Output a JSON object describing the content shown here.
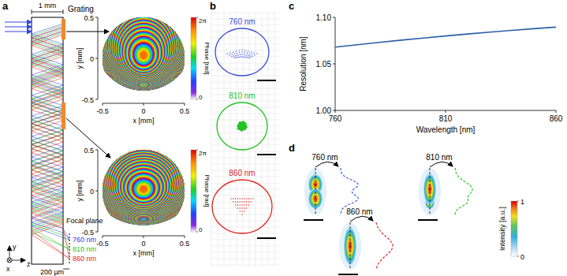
{
  "panel_labels": [
    "a",
    "b",
    "c",
    "d"
  ],
  "schematic": {
    "width_label": "1 mm",
    "grating_label": "Grating",
    "focal_plane_label": "Focal plane",
    "distance_label": "200 µm",
    "input_color": "#3344dd",
    "grating_color": "#f0892a",
    "wavelengths": [
      {
        "label": "760 nm",
        "color": "#2a3fe0"
      },
      {
        "label": "810 nm",
        "color": "#1fbf1f"
      },
      {
        "label": "860 nm",
        "color": "#e5201c"
      }
    ],
    "axis_labels": [
      "y",
      "x",
      "z"
    ]
  },
  "phase_maps": {
    "xlabel": "x [mm]",
    "ylabel": "y [mm]",
    "xlim": [
      -0.5,
      0.5
    ],
    "ylim": [
      -0.5,
      0.5
    ],
    "xticks": [
      -0.5,
      0,
      0.5
    ],
    "yticks": [
      -0.5,
      0,
      0.5
    ],
    "colorbar": {
      "label": "Phase [rad]",
      "range": [
        0,
        6.2832
      ],
      "ticks": [
        0,
        {
          "value": 6.2832,
          "label": "2π"
        }
      ]
    }
  },
  "spot_diagrams": [
    {
      "label": "760 nm",
      "color": "#3b4fd8"
    },
    {
      "label": "810 nm",
      "color": "#22c322"
    },
    {
      "label": "860 nm",
      "color": "#e0231d"
    }
  ],
  "chart_data": {
    "type": "line",
    "xlabel": "Wavelength [nm]",
    "ylabel": "Resolution [nm]",
    "x": [
      760,
      770,
      780,
      790,
      800,
      810,
      820,
      830,
      840,
      850,
      860
    ],
    "values": [
      1.068,
      1.0706,
      1.0731,
      1.0755,
      1.0778,
      1.08,
      1.0821,
      1.0841,
      1.086,
      1.0878,
      1.0895
    ],
    "color": "#2a5ea8",
    "xlim": [
      760,
      860
    ],
    "ylim": [
      1.0,
      1.1
    ],
    "xticks": [
      760,
      810,
      860
    ],
    "yticks": [
      {
        "value": 1.0,
        "label": "1.00"
      },
      1.05,
      {
        "value": 1.1,
        "label": "1.10"
      }
    ],
    "grid": false
  },
  "psf": {
    "images": [
      {
        "label": "760 nm",
        "color": "#3b5bd6"
      },
      {
        "label": "810 nm",
        "color": "#22c322"
      },
      {
        "label": "860 nm",
        "color": "#e0231d"
      }
    ],
    "colorbar": {
      "label": "Intensity [a.u.]",
      "range": [
        0,
        1
      ],
      "ticks": [
        0,
        1
      ]
    }
  }
}
